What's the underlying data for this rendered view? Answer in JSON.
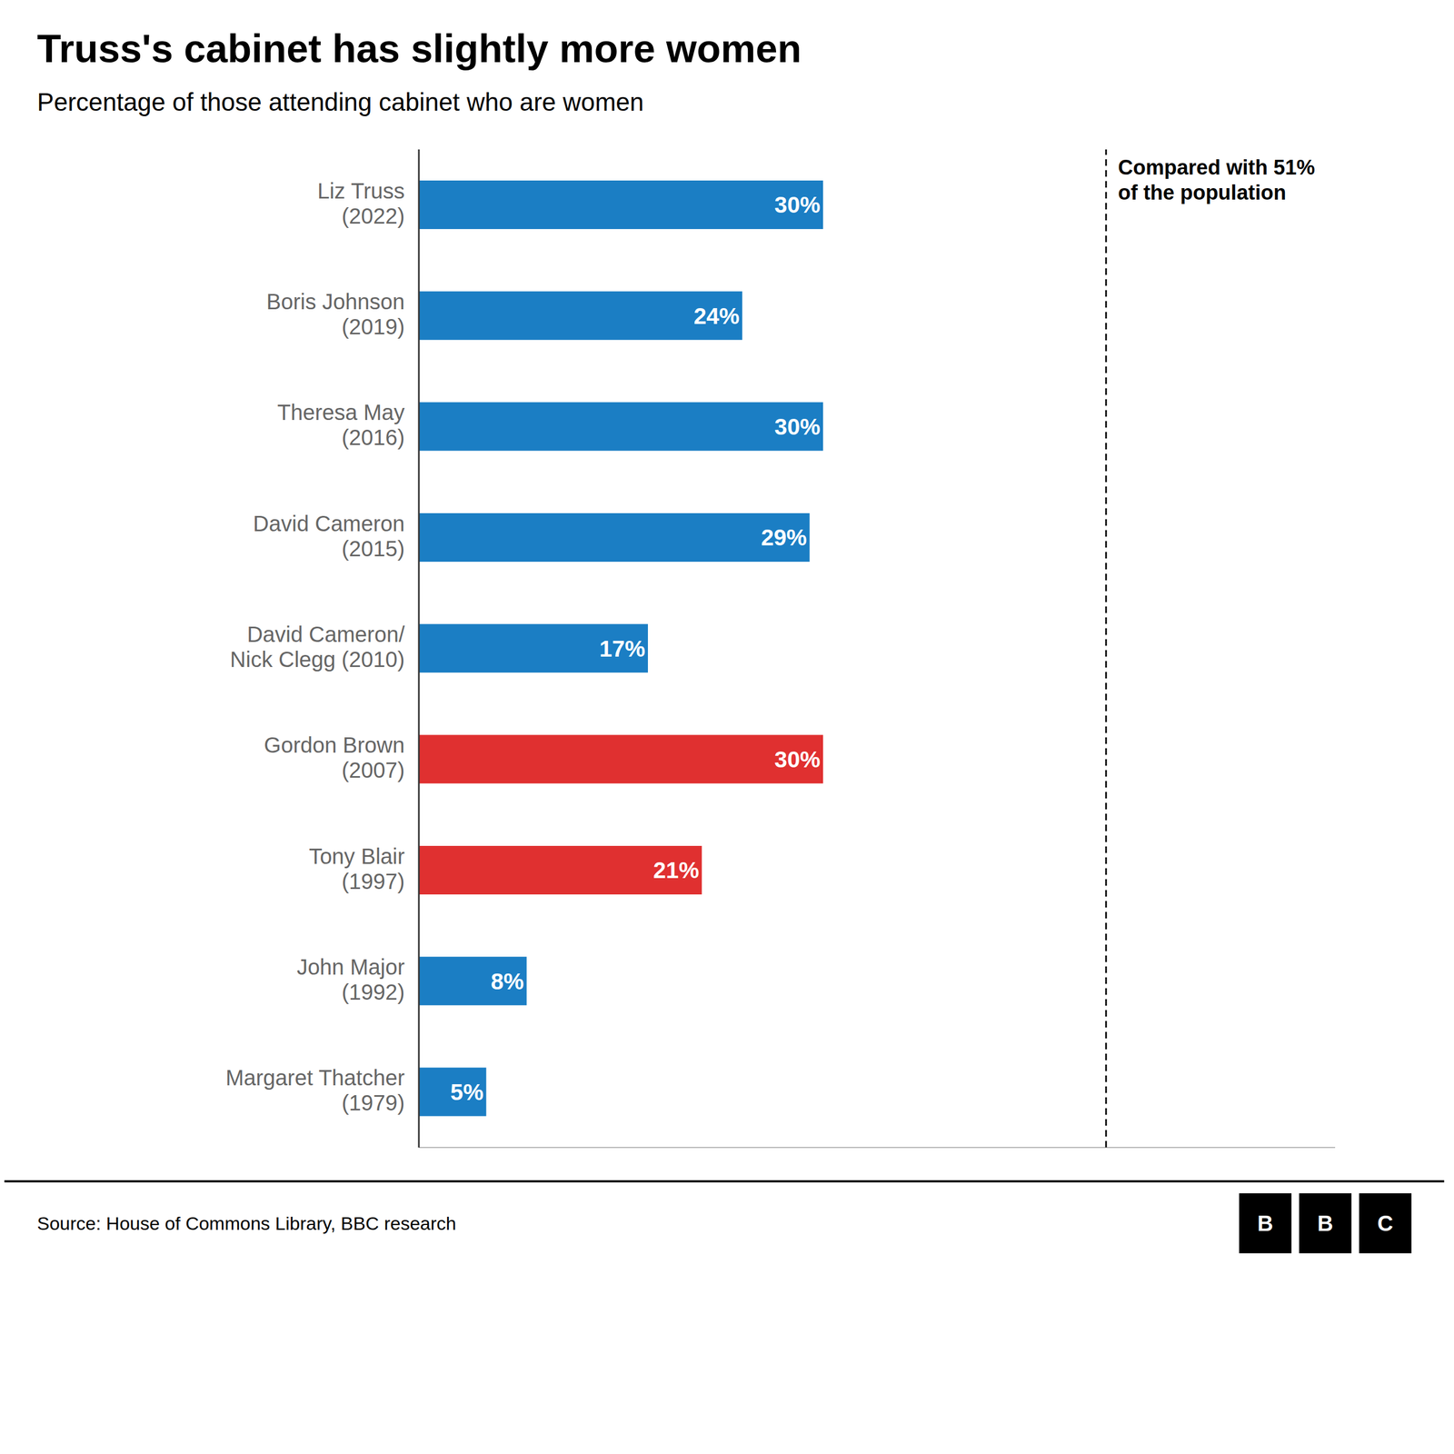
{
  "chart_data": {
    "type": "bar",
    "orientation": "horizontal",
    "title": "Truss's cabinet has slightly more women",
    "subtitle": "Percentage of those attending cabinet who are women",
    "annotation": "Compared with 51%\nof the population",
    "reference_line": 51,
    "source": "Source: House of Commons Library, BBC research",
    "logo": "BBC",
    "categories": [
      "Liz Truss\n(2022)",
      "Boris Johnson\n(2019)",
      "Theresa May\n(2016)",
      "David Cameron\n(2015)",
      "David Cameron/\nNick Clegg (2010)",
      "Gordon Brown\n(2007)",
      "Tony Blair\n(1997)",
      "John Major\n(1992)",
      "Margaret Thatcher\n(1979)"
    ],
    "values": [
      30,
      24,
      30,
      29,
      17,
      30,
      21,
      8,
      5
    ],
    "value_labels": [
      "30%",
      "24%",
      "30%",
      "29%",
      "17%",
      "30%",
      "21%",
      "8%",
      "5%"
    ],
    "colors": [
      "#1b7ec4",
      "#1b7ec4",
      "#1b7ec4",
      "#1b7ec4",
      "#1b7ec4",
      "#e03030",
      "#e03030",
      "#1b7ec4",
      "#1b7ec4"
    ],
    "xlim": [
      0,
      68
    ],
    "xticks": [],
    "data_labels": true,
    "tick_labels": "y",
    "grid": false
  }
}
